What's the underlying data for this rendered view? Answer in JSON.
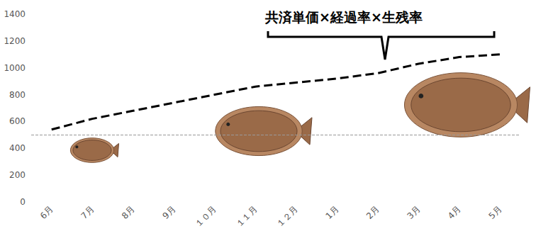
{
  "chart_data": {
    "type": "line",
    "categories": [
      "6月",
      "7月",
      "8月",
      "9月",
      "１０月",
      "１１月",
      "１２月",
      "1月",
      "2月",
      "3月",
      "4月",
      "5月"
    ],
    "values": [
      540,
      620,
      680,
      740,
      800,
      860,
      890,
      920,
      960,
      1030,
      1080,
      1100
    ],
    "color": "#000000",
    "line_style": "dashed",
    "ylim": [
      0,
      1400
    ],
    "yticks": [
      0,
      200,
      400,
      600,
      800,
      1000,
      1200,
      1400
    ],
    "grid": false,
    "reference_lines": [
      500
    ],
    "annotations": [
      "共済単価×経過率×生残率"
    ]
  }
}
